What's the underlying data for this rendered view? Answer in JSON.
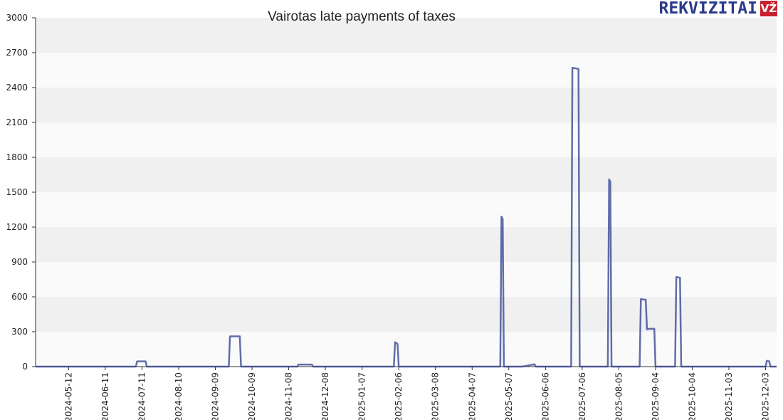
{
  "logo": {
    "text": "REKVIZITAI",
    "badge": "VŽ"
  },
  "chart_data": {
    "type": "line",
    "title": "Vairotas late payments of taxes",
    "xlabel": "",
    "ylabel": "",
    "ylim": [
      0,
      3000
    ],
    "yticks": [
      0,
      300,
      600,
      900,
      1200,
      1500,
      1800,
      2100,
      2400,
      2700,
      3000
    ],
    "xlim": [
      "2024-04-15",
      "2025-12-12"
    ],
    "xticks": [
      "2024-05-12",
      "2024-06-11",
      "2024-07-11",
      "2024-08-10",
      "2024-09-09",
      "2024-10-09",
      "2024-11-08",
      "2024-12-08",
      "2025-01-07",
      "2025-02-06",
      "2025-03-08",
      "2025-04-07",
      "2025-05-07",
      "2025-06-06",
      "2025-07-06",
      "2025-08-05",
      "2025-09-04",
      "2025-10-04",
      "2025-11-03",
      "2025-12-03"
    ],
    "grid": true,
    "colors": {
      "line": "#2e3f8f",
      "band_dark": "#f0f0f0",
      "band_light": "#fafafa",
      "axis": "#333333"
    },
    "series": [
      {
        "x": [
          "2024-04-15",
          "2024-07-06",
          "2024-07-07",
          "2024-07-14",
          "2024-07-15",
          "2024-09-20",
          "2024-09-21",
          "2024-09-29",
          "2024-09-30",
          "2024-11-15",
          "2024-11-16",
          "2024-11-27",
          "2024-11-28",
          "2025-02-02",
          "2025-02-03",
          "2025-02-05",
          "2025-02-06",
          "2025-04-30",
          "2025-05-01",
          "2025-05-02",
          "2025-05-03",
          "2025-05-18",
          "2025-05-28",
          "2025-05-29",
          "2025-06-27",
          "2025-06-28",
          "2025-07-03",
          "2025-07-04",
          "2025-07-27",
          "2025-07-28",
          "2025-07-29",
          "2025-07-30",
          "2025-08-22",
          "2025-08-23",
          "2025-08-27",
          "2025-08-28",
          "2025-08-30",
          "2025-09-03",
          "2025-09-04",
          "2025-09-20",
          "2025-09-21",
          "2025-09-24",
          "2025-09-25",
          "2025-12-03",
          "2025-12-04",
          "2025-12-06",
          "2025-12-07",
          "2025-12-12"
        ],
        "values": [
          0,
          0,
          45,
          45,
          0,
          0,
          260,
          260,
          0,
          0,
          18,
          18,
          0,
          0,
          210,
          195,
          0,
          0,
          1290,
          1270,
          0,
          0,
          20,
          0,
          0,
          2570,
          2560,
          0,
          0,
          1610,
          1590,
          0,
          0,
          580,
          575,
          320,
          325,
          325,
          0,
          0,
          770,
          765,
          0,
          0,
          50,
          45,
          0,
          0
        ]
      }
    ]
  }
}
